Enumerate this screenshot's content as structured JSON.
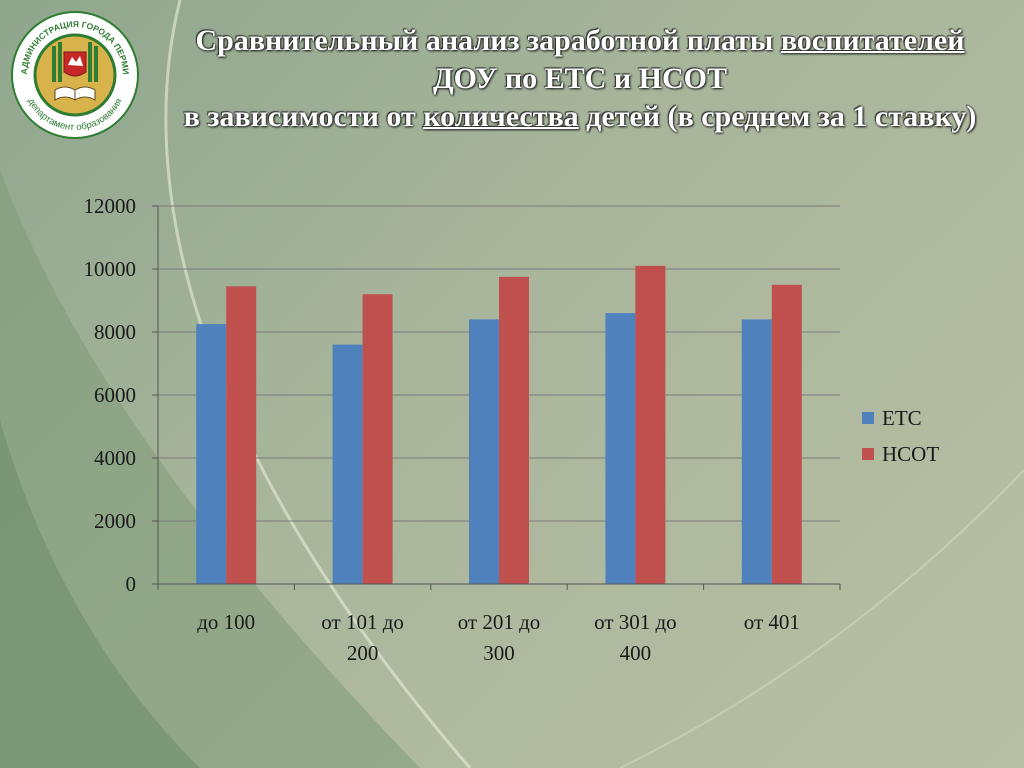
{
  "logo": {
    "ring_text_top": "АДМИНИСТРАЦИЯ ГОРОДА ПЕРМИ",
    "ring_text_bottom": "департамент образования",
    "ring_color": "#2e7d32",
    "gold_color": "#d8b24a"
  },
  "title": {
    "line1_a": "Сравнительный анализ  заработной платы ",
    "line1_u": "воспитателей",
    "line2": "ДОУ по ЕТС и НСОТ",
    "line3_a": "в зависимости от ",
    "line3_u": "количества",
    "line3_b": " детей (в среднем за 1 ставку)"
  },
  "chart_data": {
    "type": "bar",
    "categories": [
      [
        "до 100"
      ],
      [
        "от 101 до",
        "200"
      ],
      [
        "от 201 до",
        "300"
      ],
      [
        "от 301 до",
        "400"
      ],
      [
        "от 401"
      ]
    ],
    "series": [
      {
        "name": "ЕТС",
        "color": "#4f81bd",
        "values": [
          8250,
          7600,
          8400,
          8600,
          8400
        ]
      },
      {
        "name": "НСОТ",
        "color": "#c0504d",
        "values": [
          9450,
          9200,
          9750,
          10100,
          9500
        ]
      }
    ],
    "ylim": [
      0,
      12000
    ],
    "yticks": [
      "0",
      "2000",
      "4000",
      "6000",
      "8000",
      "10000",
      "12000"
    ],
    "grid": true,
    "legend_position": "right"
  }
}
